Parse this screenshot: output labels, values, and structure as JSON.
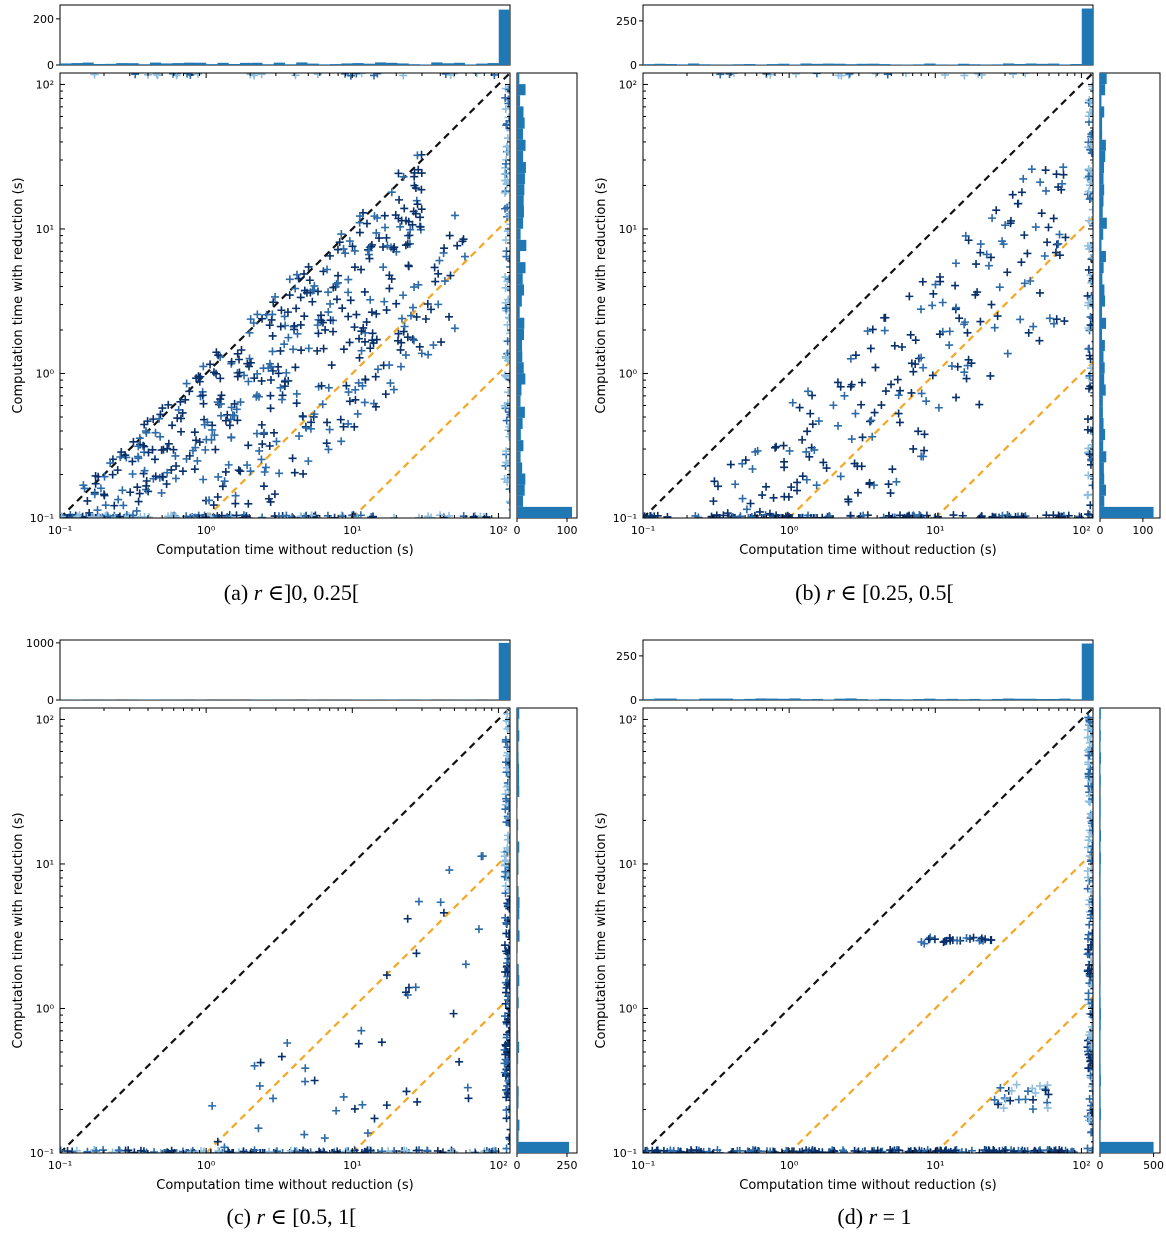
{
  "chart_data": [
    {
      "type": "scatter",
      "subfigure": "(a)",
      "caption_prefix": "(a)",
      "caption_var": "r",
      "caption_rest": "∈]0, 0.25[",
      "xlabel": "Computation time without reduction (s)",
      "ylabel": "Computation time with reduction (s)",
      "x_scale": "log",
      "y_scale": "log",
      "xlim": [
        0.1,
        120
      ],
      "ylim": [
        0.1,
        120
      ],
      "x_ticks": [
        "10⁻¹",
        "10⁰",
        "10¹",
        "10²"
      ],
      "y_ticks": [
        "10⁻¹",
        "10⁰",
        "10¹",
        "10²"
      ],
      "reference_lines": [
        {
          "style": "black dashed",
          "relation": "y = x"
        },
        {
          "style": "orange dashed",
          "relation": "y = x / 10"
        },
        {
          "style": "orange dashed",
          "relation": "y = x / 100"
        }
      ],
      "marker": "+",
      "colormap": "Blues",
      "cluster_summary": [
        {
          "region": "near diagonal",
          "x_range": [
            0.1,
            30
          ],
          "ratio_range": [
            0.3,
            1.2
          ],
          "count": 360,
          "shade": "dark"
        },
        {
          "region": "between diagonals",
          "x_range": [
            0.8,
            60
          ],
          "ratio_range": [
            0.04,
            0.3
          ],
          "count": 200,
          "shade": "dark"
        },
        {
          "region": "timeout column",
          "x_range": [
            110,
            125
          ],
          "y_range": [
            0.1,
            110
          ],
          "count": 120,
          "shade": "light"
        },
        {
          "region": "floor row",
          "x_range": [
            0.1,
            100
          ],
          "y_range": [
            0.1,
            0.105
          ],
          "count": 90,
          "shade": "mixed"
        },
        {
          "region": "top row",
          "x_range": [
            0.15,
            110
          ],
          "y_range": [
            115,
            120
          ],
          "count": 30,
          "shade": "light"
        }
      ],
      "top_hist": {
        "yticks": [
          "0",
          "200"
        ],
        "ymax": 260,
        "timeout_bin_count": 240,
        "typical_bin_count": 8
      },
      "right_hist": {
        "xticks": [
          "0",
          "100"
        ],
        "xmax": 120,
        "floor_bin_count": 110,
        "typical_bin_count": 12
      }
    },
    {
      "type": "scatter",
      "subfigure": "(b)",
      "caption_prefix": "(b)",
      "caption_var": "r",
      "caption_rest": "∈ [0.25, 0.5[",
      "xlabel": "Computation time without reduction (s)",
      "ylabel": "Computation time with reduction (s)",
      "x_scale": "log",
      "y_scale": "log",
      "xlim": [
        0.1,
        120
      ],
      "ylim": [
        0.1,
        120
      ],
      "x_ticks": [
        "10⁻¹",
        "10⁰",
        "10¹",
        "10²"
      ],
      "y_ticks": [
        "10⁻¹",
        "10⁰",
        "10¹",
        "10²"
      ],
      "reference_lines": [
        {
          "style": "black dashed",
          "relation": "y = x"
        },
        {
          "style": "orange dashed",
          "relation": "y = x / 10"
        },
        {
          "style": "orange dashed",
          "relation": "y = x / 100"
        }
      ],
      "marker": "+",
      "colormap": "Blues",
      "cluster_summary": [
        {
          "region": "between diagonals",
          "x_range": [
            0.3,
            80
          ],
          "ratio_range": [
            0.03,
            0.6
          ],
          "count": 260,
          "shade": "dark"
        },
        {
          "region": "timeout column",
          "x_range": [
            110,
            125
          ],
          "y_range": [
            0.1,
            110
          ],
          "count": 140,
          "shade": "mixed"
        },
        {
          "region": "floor row",
          "x_range": [
            0.1,
            100
          ],
          "y_range": [
            0.1,
            0.105
          ],
          "count": 80,
          "shade": "dark"
        },
        {
          "region": "top row",
          "x_range": [
            0.25,
            60
          ],
          "y_range": [
            115,
            120
          ],
          "count": 20,
          "shade": "light"
        }
      ],
      "top_hist": {
        "yticks": [
          "0",
          "250"
        ],
        "ymax": 340,
        "timeout_bin_count": 320,
        "typical_bin_count": 6
      },
      "right_hist": {
        "xticks": [
          "0",
          "100"
        ],
        "xmax": 140,
        "floor_bin_count": 125,
        "typical_bin_count": 10
      }
    },
    {
      "type": "scatter",
      "subfigure": "(c)",
      "caption_prefix": "(c)",
      "caption_var": "r",
      "caption_rest": "∈ [0.5, 1[",
      "xlabel": "Computation time without reduction (s)",
      "ylabel": "Computation time with reduction (s)",
      "x_scale": "log",
      "y_scale": "log",
      "xlim": [
        0.1,
        120
      ],
      "ylim": [
        0.1,
        120
      ],
      "x_ticks": [
        "10⁻¹",
        "10⁰",
        "10¹",
        "10²"
      ],
      "y_ticks": [
        "10⁻¹",
        "10⁰",
        "10¹",
        "10²"
      ],
      "reference_lines": [
        {
          "style": "black dashed",
          "relation": "y = x"
        },
        {
          "style": "orange dashed",
          "relation": "y = x / 10"
        },
        {
          "style": "orange dashed",
          "relation": "y = x / 100"
        }
      ],
      "marker": "+",
      "colormap": "Blues",
      "cluster_summary": [
        {
          "region": "between diagonals",
          "x_range": [
            0.5,
            80
          ],
          "ratio_range": [
            0.003,
            0.2
          ],
          "count": 90,
          "shade": "dark"
        },
        {
          "region": "timeout column",
          "x_range": [
            110,
            125
          ],
          "y_range": [
            0.1,
            110
          ],
          "count": 220,
          "shade": "dark"
        },
        {
          "region": "floor row",
          "x_range": [
            0.1,
            100
          ],
          "y_range": [
            0.1,
            0.105
          ],
          "count": 90,
          "shade": "mixed"
        }
      ],
      "top_hist": {
        "yticks": [
          "0",
          "1000"
        ],
        "ymax": 1050,
        "timeout_bin_count": 1000,
        "typical_bin_count": 4
      },
      "right_hist": {
        "xticks": [
          "0",
          "250"
        ],
        "xmax": 300,
        "floor_bin_count": 260,
        "typical_bin_count": 8
      }
    },
    {
      "type": "scatter",
      "subfigure": "(d)",
      "caption_prefix": "(d)",
      "caption_var": "r",
      "caption_rest": "= 1",
      "xlabel": "Computation time without reduction (s)",
      "ylabel": "Computation time with reduction (s)",
      "x_scale": "log",
      "y_scale": "log",
      "xlim": [
        0.1,
        120
      ],
      "ylim": [
        0.1,
        120
      ],
      "x_ticks": [
        "10⁻¹",
        "10⁰",
        "10¹",
        "10²"
      ],
      "y_ticks": [
        "10⁻¹",
        "10⁰",
        "10¹",
        "10²"
      ],
      "reference_lines": [
        {
          "style": "black dashed",
          "relation": "y = x"
        },
        {
          "style": "orange dashed",
          "relation": "y = x / 10"
        },
        {
          "style": "orange dashed",
          "relation": "y = x / 100"
        }
      ],
      "marker": "+",
      "colormap": "Blues",
      "cluster_summary": [
        {
          "region": "cluster near (9, 3)",
          "x_range": [
            8,
            25
          ],
          "y_range": [
            2.8,
            3.1
          ],
          "count": 25,
          "shade": "dark"
        },
        {
          "region": "cluster near (40, 0.25)",
          "x_range": [
            25,
            60
          ],
          "y_range": [
            0.2,
            0.3
          ],
          "count": 25,
          "shade": "mixed"
        },
        {
          "region": "timeout column",
          "x_range": [
            110,
            125
          ],
          "y_range": [
            0.1,
            110
          ],
          "count": 200,
          "shade": "mixed"
        },
        {
          "region": "floor row",
          "x_range": [
            0.1,
            100
          ],
          "y_range": [
            0.1,
            0.105
          ],
          "count": 180,
          "shade": "dark"
        }
      ],
      "top_hist": {
        "yticks": [
          "0",
          "250"
        ],
        "ymax": 340,
        "timeout_bin_count": 320,
        "typical_bin_count": 6
      },
      "right_hist": {
        "xticks": [
          "0",
          "500"
        ],
        "xmax": 560,
        "floor_bin_count": 500,
        "typical_bin_count": 6
      }
    }
  ],
  "colors": {
    "hist_bar": "#1f77b4",
    "diagonal": "#111111",
    "orange_line": "#f5a623",
    "dark_marker": "#08306b",
    "mid_marker": "#2c6aa8",
    "light_marker": "#8fbfde"
  }
}
